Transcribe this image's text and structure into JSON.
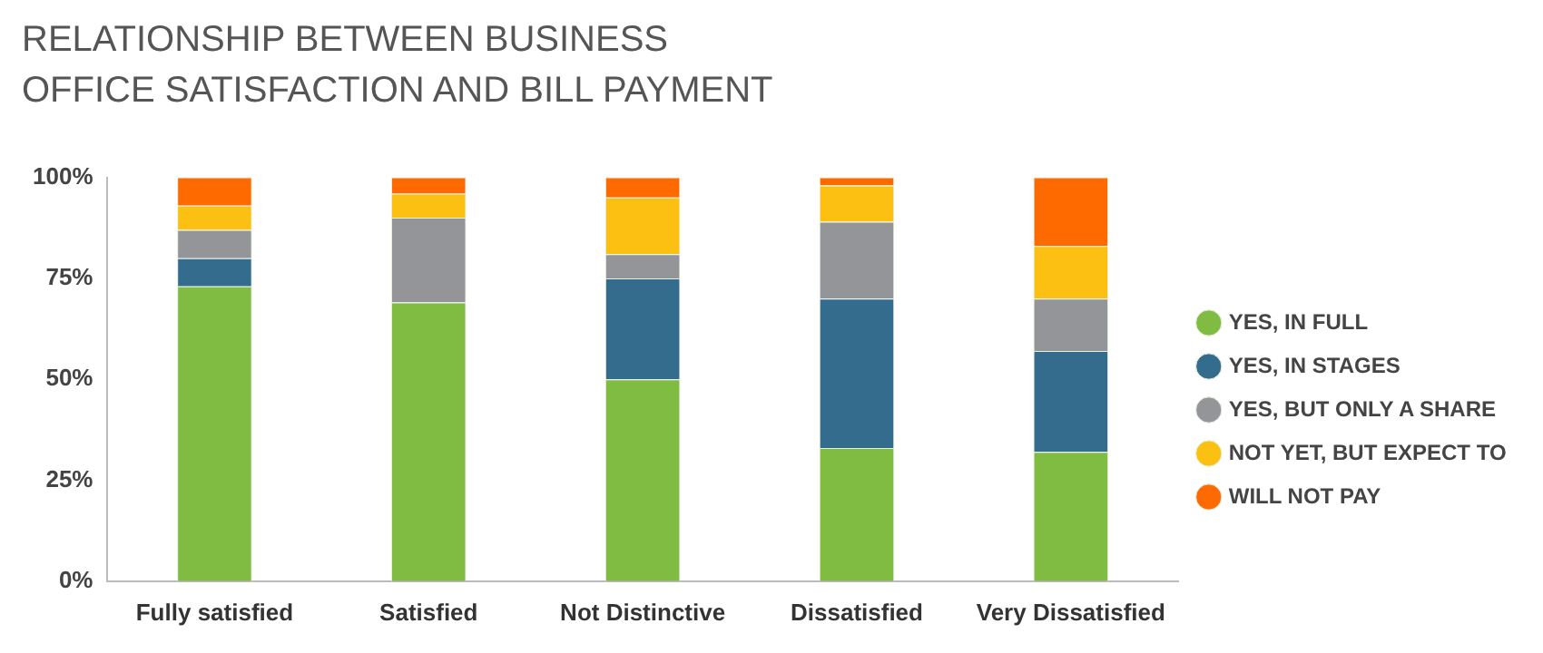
{
  "chart_data": {
    "type": "bar",
    "title": "RELATIONSHIP BETWEEN BUSINESS OFFICE SATISFACTION AND BILL PAYMENT",
    "stacked": true,
    "categories": [
      "Fully satisfied",
      "Satisfied",
      "Not Distinctive",
      "Dissatisfied",
      "Very Dissatisfied"
    ],
    "series": [
      {
        "name": "YES, IN FULL",
        "color": "#80bc42",
        "values": [
          73,
          69,
          50,
          33,
          32
        ]
      },
      {
        "name": "YES, IN STAGES",
        "color": "#336c8c",
        "values": [
          7,
          0,
          25,
          37,
          25
        ]
      },
      {
        "name": "YES, BUT ONLY A SHARE",
        "color": "#949598",
        "values": [
          7,
          21,
          6,
          19,
          13
        ]
      },
      {
        "name": "NOT YET, BUT EXPECT TO",
        "color": "#fbc012",
        "values": [
          6,
          6,
          14,
          9,
          13
        ]
      },
      {
        "name": "WILL NOT PAY",
        "color": "#ff6a00",
        "values": [
          7,
          4,
          5,
          2,
          17
        ]
      }
    ],
    "ylim": [
      0,
      100
    ],
    "yticks": [
      {
        "value": 0,
        "label": "0%"
      },
      {
        "value": 25,
        "label": "25%"
      },
      {
        "value": 50,
        "label": "50%"
      },
      {
        "value": 75,
        "label": "75%"
      },
      {
        "value": 100,
        "label": "100%"
      }
    ],
    "grid": false,
    "legend": "right"
  }
}
